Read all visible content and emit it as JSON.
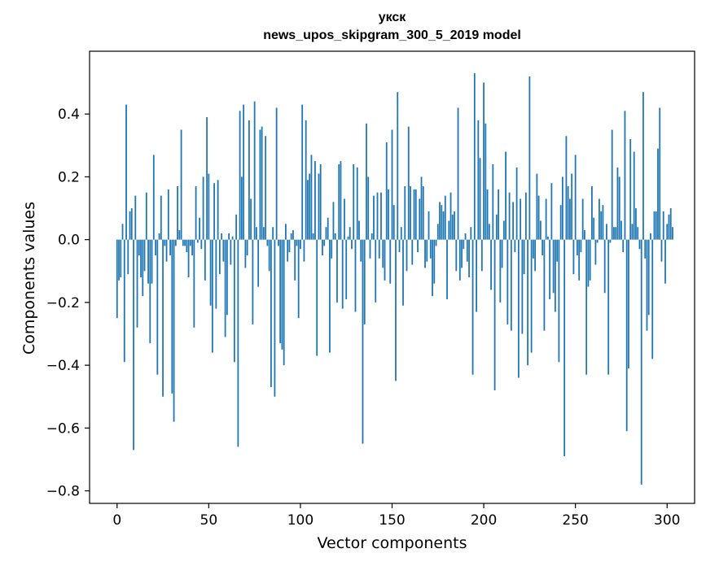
{
  "chart_data": {
    "type": "bar",
    "title_line1": "укск",
    "title_line2": "news_upos_skipgram_300_5_2019 model",
    "xlabel": "Vector components",
    "ylabel": "Components values",
    "xlim": [
      -15,
      315
    ],
    "ylim": [
      -0.84,
      0.6
    ],
    "xticks": [
      0,
      50,
      100,
      150,
      200,
      250,
      300
    ],
    "yticks": [
      -0.8,
      -0.6,
      -0.4,
      -0.2,
      0.0,
      0.2,
      0.4
    ],
    "ytick_labels": [
      "−0.8",
      "−0.6",
      "−0.4",
      "−0.2",
      "0.0",
      "0.2",
      "0.4"
    ],
    "bar_color": "#1f77b4",
    "grid": false,
    "values": [
      -0.25,
      -0.13,
      -0.12,
      0.05,
      -0.39,
      0.43,
      -0.11,
      0.09,
      0.1,
      -0.67,
      0.14,
      -0.28,
      -0.05,
      -0.12,
      -0.18,
      -0.1,
      0.15,
      -0.14,
      -0.33,
      -0.14,
      0.27,
      -0.05,
      -0.43,
      0.02,
      0.14,
      -0.5,
      -0.02,
      -0.07,
      0.16,
      -0.05,
      -0.49,
      -0.58,
      -0.02,
      0.17,
      0.03,
      0.35,
      -0.02,
      -0.02,
      -0.04,
      -0.12,
      -0.02,
      -0.05,
      -0.28,
      0.17,
      -0.01,
      0.07,
      -0.03,
      0.2,
      -0.13,
      0.39,
      0.21,
      -0.21,
      -0.36,
      0.18,
      -0.22,
      0.19,
      -0.11,
      0.02,
      -0.07,
      -0.31,
      -0.24,
      0.02,
      -0.08,
      0.01,
      -0.39,
      0.08,
      -0.66,
      0.41,
      0.2,
      0.43,
      -0.09,
      -0.05,
      0.38,
      0.13,
      -0.27,
      0.44,
      0.04,
      -0.15,
      0.35,
      0.36,
      0.04,
      0.33,
      -0.02,
      -0.1,
      -0.47,
      0.04,
      -0.5,
      0.42,
      -0.02,
      -0.33,
      -0.35,
      -0.4,
      0.05,
      -0.07,
      -0.04,
      0.02,
      0.03,
      -0.13,
      -0.02,
      -0.25,
      -0.03,
      0.43,
      -0.07,
      0.38,
      0.19,
      0.21,
      0.27,
      0.02,
      0.25,
      -0.37,
      0.21,
      0.24,
      -0.05,
      -0.02,
      0.04,
      0.07,
      -0.36,
      -0.06,
      0.12,
      0.02,
      -0.2,
      0.24,
      0.25,
      -0.22,
      0.13,
      -0.19,
      0.01,
      0.04,
      -0.03,
      0.24,
      -0.23,
      0.23,
      0.06,
      -0.07,
      -0.65,
      -0.27,
      0.37,
      0.2,
      -0.06,
      0.02,
      0.14,
      -0.2,
      0.15,
      -0.06,
      0.15,
      -0.09,
      -0.13,
      0.31,
      0.16,
      -0.14,
      0.35,
      0.11,
      -0.45,
      0.47,
      -0.04,
      0.04,
      -0.21,
      0.17,
      -0.1,
      0.36,
      0.17,
      -0.08,
      0.16,
      0.16,
      -0.04,
      0.13,
      0.2,
      0.17,
      -0.09,
      -0.07,
      0.09,
      -0.06,
      -0.18,
      -0.14,
      -0.02,
      0.05,
      0.12,
      0.11,
      0.09,
      0.14,
      -0.19,
      0.06,
      0.15,
      0.08,
      0.09,
      -0.1,
      0.42,
      -0.13,
      -0.09,
      -0.03,
      0.02,
      -0.07,
      -0.12,
      0.04,
      -0.43,
      0.53,
      -0.23,
      0.38,
      0.26,
      -0.1,
      0.5,
      0.37,
      0.16,
      0.05,
      -0.16,
      0.24,
      -0.48,
      0.08,
      0.16,
      -0.2,
      -0.09,
      0.06,
      0.28,
      -0.27,
      0.15,
      -0.29,
      0.12,
      -0.04,
      0.23,
      -0.44,
      0.13,
      -0.3,
      -0.11,
      0.15,
      -0.4,
      0.52,
      -0.36,
      -0.06,
      -0.1,
      0.21,
      0.14,
      0.06,
      -0.05,
      -0.29,
      0.13,
      0.01,
      -0.19,
      0.18,
      -0.17,
      -0.23,
      -0.07,
      -0.39,
      0.11,
      0.2,
      -0.69,
      0.33,
      0.17,
      0.13,
      0.21,
      -0.11,
      0.27,
      -0.05,
      -0.13,
      -0.04,
      0.13,
      0.03,
      -0.43,
      -0.15,
      -0.13,
      0.17,
      0.07,
      -0.08,
      -0.01,
      0.13,
      0.09,
      0.11,
      -0.17,
      0.05,
      -0.43,
      -0.01,
      0.35,
      0.04,
      0.04,
      0.23,
      0.2,
      0.06,
      -0.04,
      0.41,
      -0.61,
      -0.41,
      0.32,
      0.05,
      0.28,
      0.1,
      0.04,
      -0.03,
      -0.78,
      0.47,
      -0.06,
      -0.29,
      -0.24,
      0.02,
      -0.38,
      0.09,
      0.09,
      0.29,
      0.42,
      -0.07,
      0.09,
      -0.14,
      0.05,
      0.08,
      0.1,
      0.04
    ]
  }
}
